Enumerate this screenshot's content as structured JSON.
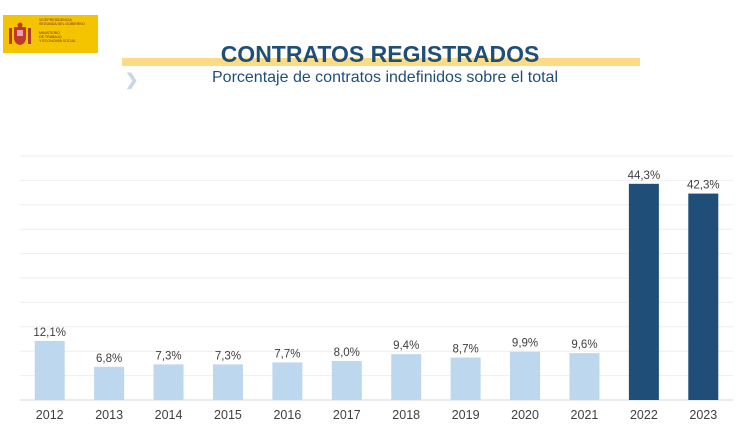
{
  "logo": {
    "lines": [
      "VICEPRESIDENCIA",
      "SEGUNDA DEL GOBIERNO",
      "",
      "MINISTERIO",
      "DE TRABAJO",
      "Y ECONOMÍA SOCIAL"
    ]
  },
  "header": {
    "title": "CONTRATOS REGISTRADOS",
    "subtitle": "Porcentaje de contratos indefinidos sobre el total",
    "chevron_icon": "chevron-right-icon"
  },
  "colors": {
    "light_bar": "#bdd7ee",
    "dark_bar": "#1f4e79",
    "title": "#1f4e79",
    "accent": "#fbdc82"
  },
  "chart_data": {
    "type": "bar",
    "title": "CONTRATOS REGISTRADOS",
    "subtitle": "Porcentaje de contratos indefinidos sobre el total",
    "xlabel": "",
    "ylabel": "",
    "ylim": [
      0,
      50
    ],
    "grid": true,
    "categories": [
      "2012",
      "2013",
      "2014",
      "2015",
      "2016",
      "2017",
      "2018",
      "2019",
      "2020",
      "2021",
      "2022",
      "2023"
    ],
    "values": [
      12.1,
      6.8,
      7.3,
      7.3,
      7.7,
      8.0,
      9.4,
      8.7,
      9.9,
      9.6,
      44.3,
      42.3
    ],
    "labels": [
      "12,1%",
      "6,8%",
      "7,3%",
      "7,3%",
      "7,7%",
      "8,0%",
      "9,4%",
      "8,7%",
      "9,9%",
      "9,6%",
      "44,3%",
      "42,3%"
    ],
    "highlighted": [
      false,
      false,
      false,
      false,
      false,
      false,
      false,
      false,
      false,
      false,
      true,
      true
    ]
  }
}
